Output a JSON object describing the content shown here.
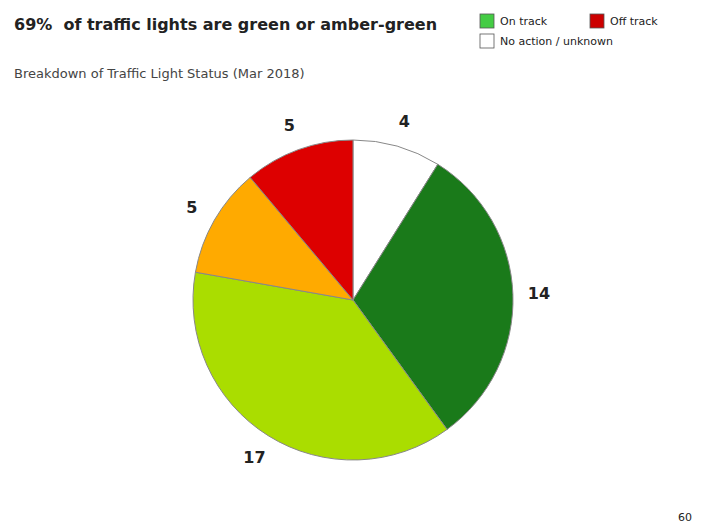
{
  "chart_data": {
    "type": "pie",
    "title": "69%  of traffic lights are green or amber-green",
    "subtitle": "Breakdown of Traffic Light Status (Mar 2018)",
    "values": [
      4,
      14,
      17,
      5,
      5
    ],
    "colors": [
      "#ffffff",
      "#1a7a1a",
      "#aadd00",
      "#ffaa00",
      "#dd0000"
    ],
    "data_labels": true,
    "annotations": [
      {
        "text": "On track",
        "color": "#44cc44"
      },
      {
        "text": "Off track",
        "color": "#cc0000"
      },
      {
        "text": "No action / unknown",
        "color": "#ffffff"
      },
      {
        "text": "60"
      }
    ]
  }
}
